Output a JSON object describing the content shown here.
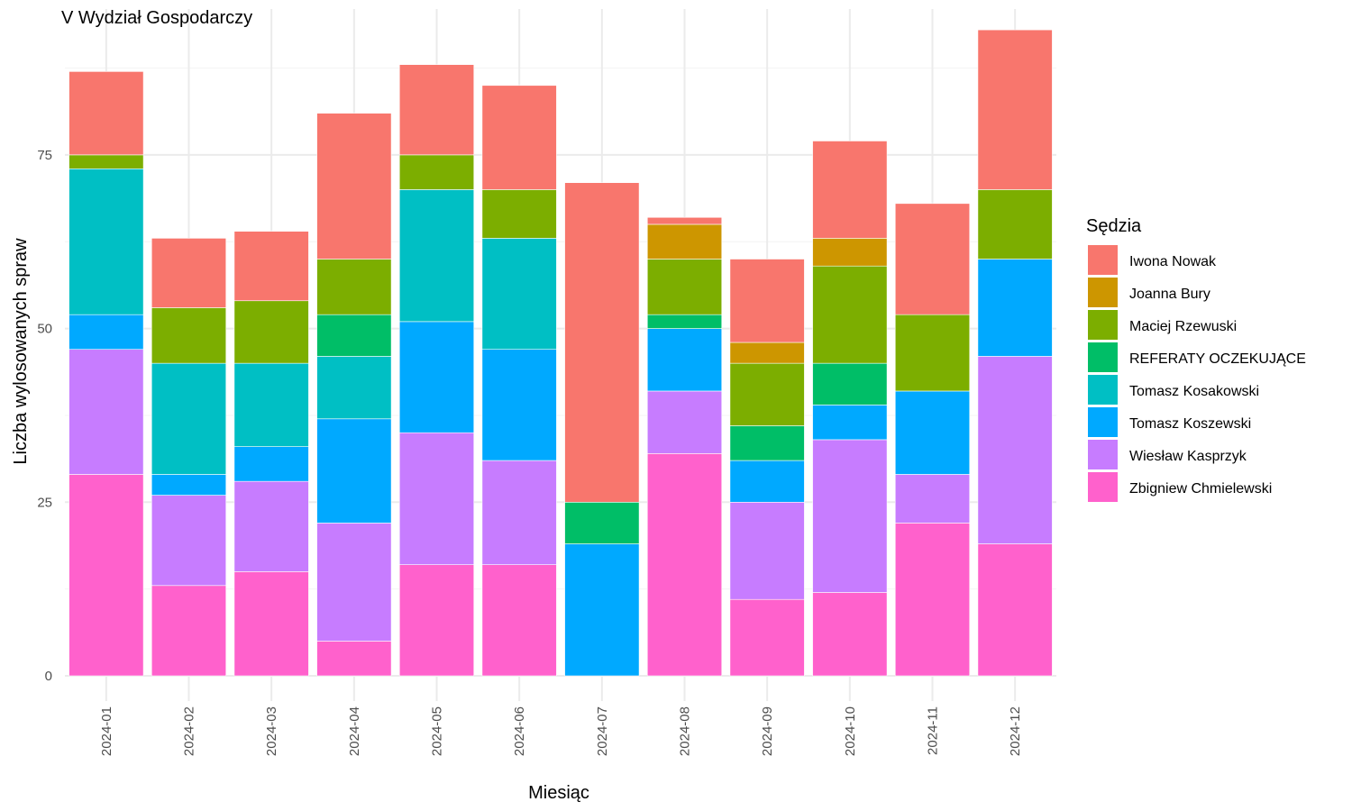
{
  "chart_data": {
    "type": "bar",
    "stacked": true,
    "title": "V Wydział Gospodarczy",
    "xlabel": "Miesiąc",
    "ylabel": "Liczba wylosowanych spraw",
    "ylim": [
      0,
      96
    ],
    "yticks": [
      0,
      25,
      50,
      75
    ],
    "grid": true,
    "legend_title": "Sędzia",
    "legend_position": "right",
    "categories": [
      "2024-01",
      "2024-02",
      "2024-03",
      "2024-04",
      "2024-05",
      "2024-06",
      "2024-07",
      "2024-08",
      "2024-09",
      "2024-10",
      "2024-11",
      "2024-12"
    ],
    "series": [
      {
        "name": "Zbigniew Chmielewski",
        "color": "#FF61CC",
        "values": [
          29,
          13,
          15,
          5,
          16,
          16,
          0,
          32,
          11,
          12,
          22,
          19
        ]
      },
      {
        "name": "Wiesław Kasprzyk",
        "color": "#C77CFF",
        "values": [
          18,
          13,
          13,
          17,
          19,
          15,
          0,
          9,
          14,
          22,
          7,
          27
        ]
      },
      {
        "name": "Tomasz Koszewski",
        "color": "#00A9FF",
        "values": [
          5,
          3,
          5,
          15,
          16,
          16,
          19,
          9,
          6,
          5,
          12,
          14
        ]
      },
      {
        "name": "Tomasz Kosakowski",
        "color": "#00BFC4",
        "values": [
          21,
          16,
          12,
          9,
          19,
          16,
          0,
          0,
          0,
          0,
          0,
          0
        ]
      },
      {
        "name": "REFERATY OCZEKUJĄCE",
        "color": "#00BE67",
        "values": [
          0,
          0,
          0,
          6,
          0,
          0,
          6,
          2,
          5,
          6,
          0,
          0
        ]
      },
      {
        "name": "Maciej Rzewuski",
        "color": "#7CAE00",
        "values": [
          2,
          8,
          9,
          8,
          5,
          7,
          0,
          8,
          9,
          14,
          11,
          10
        ]
      },
      {
        "name": "Joanna Bury",
        "color": "#CD9600",
        "values": [
          0,
          0,
          0,
          0,
          0,
          0,
          0,
          5,
          3,
          4,
          0,
          0
        ]
      },
      {
        "name": "Iwona Nowak",
        "color": "#F8766D",
        "values": [
          12,
          10,
          10,
          21,
          13,
          15,
          46,
          1,
          12,
          14,
          16,
          23
        ]
      }
    ],
    "legend_order": [
      "Iwona Nowak",
      "Joanna Bury",
      "Maciej Rzewuski",
      "REFERATY OCZEKUJĄCE",
      "Tomasz Kosakowski",
      "Tomasz Koszewski",
      "Wiesław Kasprzyk",
      "Zbigniew Chmielewski"
    ]
  }
}
